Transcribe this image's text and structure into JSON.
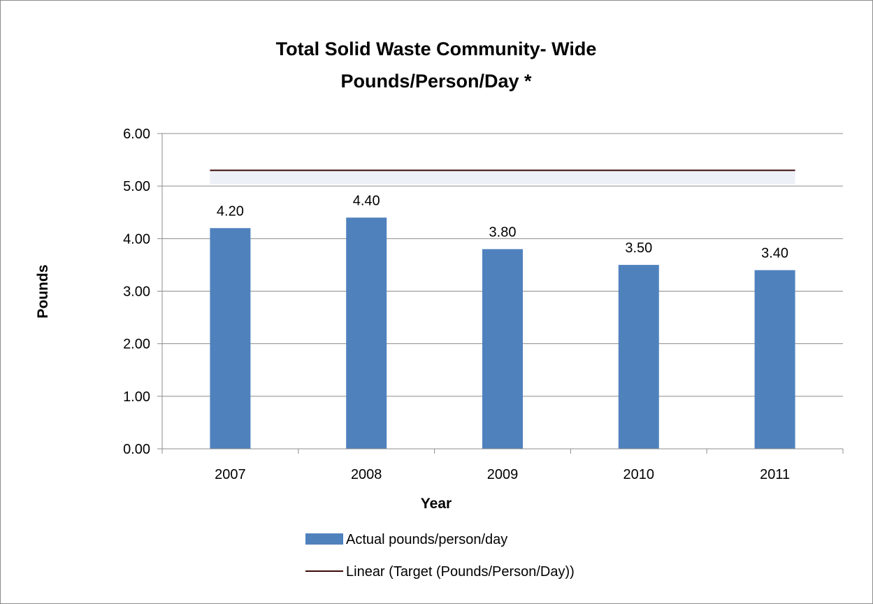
{
  "chart_data": {
    "type": "bar",
    "title_lines": [
      "Total Solid Waste Community- Wide",
      "Pounds/Person/Day *"
    ],
    "xlabel": "Year",
    "ylabel": "Pounds",
    "categories": [
      "2007",
      "2008",
      "2009",
      "2010",
      "2011"
    ],
    "series": [
      {
        "name": "Actual pounds/person/day",
        "kind": "bar",
        "color": "#4f81bd",
        "values": [
          4.2,
          4.4,
          3.8,
          3.5,
          3.4
        ],
        "data_labels": [
          "4.20",
          "4.40",
          "3.80",
          "3.50",
          "3.40"
        ]
      },
      {
        "name": "Linear (Target (Pounds/Person/Day))",
        "kind": "line",
        "color": "#3b0a0a",
        "values": [
          5.3,
          5.3,
          5.3,
          5.3,
          5.3
        ]
      }
    ],
    "ylim": [
      0,
      6
    ],
    "yticks": [
      "0.00",
      "1.00",
      "2.00",
      "3.00",
      "4.00",
      "5.00",
      "6.00"
    ],
    "grid": true,
    "legend_position": "bottom"
  }
}
